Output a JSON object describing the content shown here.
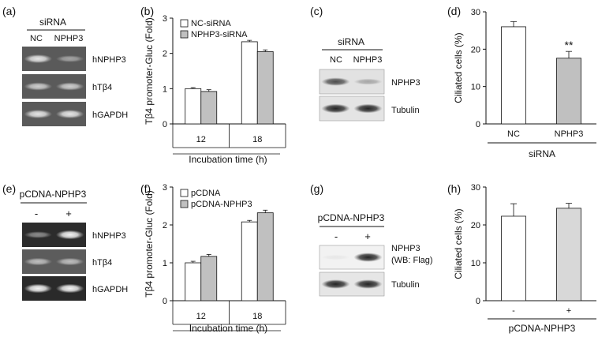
{
  "panels": {
    "a": {
      "letter": "(a)",
      "group_label": "siRNA",
      "lanes": [
        "NC",
        "NPHP3"
      ],
      "rows": [
        {
          "label": "hNPHP3",
          "intensities": [
            0.85,
            0.45
          ]
        },
        {
          "label": "hTβ4",
          "intensities": [
            0.7,
            0.7
          ]
        },
        {
          "label": "hGAPDH",
          "intensities": [
            0.85,
            0.85
          ]
        }
      ]
    },
    "b": {
      "letter": "(b)",
      "chart_data": {
        "type": "bar",
        "categories": [
          "12",
          "18"
        ],
        "series": [
          {
            "name": "NC-siRNA",
            "values": [
              1.0,
              2.33
            ],
            "errors": [
              0.03,
              0.04
            ],
            "color": "#ffffff"
          },
          {
            "name": "NPHP3-siRNA",
            "values": [
              0.92,
              2.05
            ],
            "errors": [
              0.05,
              0.05
            ],
            "color": "#c0c0c0"
          }
        ],
        "xlabel": "Incubation time (h)",
        "ylabel": "Tβ4 promoter-Gluc (Fold)",
        "ylim": [
          0,
          3
        ],
        "yticks": [
          "0",
          "1",
          "2",
          "3"
        ],
        "grid": false,
        "legend": "top-left"
      }
    },
    "c": {
      "letter": "(c)",
      "group_label": "siRNA",
      "lanes": [
        "NC",
        "NPHP3"
      ],
      "rows": [
        {
          "label": "NPHP3",
          "intensities": [
            0.75,
            0.3
          ]
        },
        {
          "label": "Tubulin",
          "intensities": [
            0.95,
            0.95
          ]
        }
      ]
    },
    "d": {
      "letter": "(d)",
      "chart_data": {
        "type": "bar",
        "categories": [
          "NC",
          "NPHP3"
        ],
        "series": [
          {
            "values": [
              26.0,
              17.6
            ],
            "errors": [
              1.4,
              1.8
            ],
            "colors": [
              "#ffffff",
              "#c0c0c0"
            ]
          }
        ],
        "annotations": [
          "",
          "**"
        ],
        "xlabel": "siRNA",
        "ylabel": "Ciliated cells (%)",
        "ylim": [
          0,
          30
        ],
        "yticks": [
          "0",
          "10",
          "20",
          "30"
        ],
        "grid": false
      }
    },
    "e": {
      "letter": "(e)",
      "group_label": "pCDNA-NPHP3",
      "lanes": [
        "-",
        "+"
      ],
      "rows": [
        {
          "label": "hNPHP3",
          "intensities": [
            0.45,
            0.95
          ]
        },
        {
          "label": "hTβ4",
          "intensities": [
            0.6,
            0.6
          ]
        },
        {
          "label": "hGAPDH",
          "intensities": [
            0.95,
            0.95
          ]
        }
      ]
    },
    "f": {
      "letter": "(f)",
      "chart_data": {
        "type": "bar",
        "categories": [
          "12",
          "18"
        ],
        "series": [
          {
            "name": "pCDNA",
            "values": [
              1.0,
              2.08
            ],
            "errors": [
              0.04,
              0.04
            ],
            "color": "#ffffff"
          },
          {
            "name": "pCDNA-NPHP3",
            "values": [
              1.17,
              2.32
            ],
            "errors": [
              0.05,
              0.07
            ],
            "color": "#c0c0c0"
          }
        ],
        "xlabel": "Incubation time (h)",
        "ylabel": "Tβ4 promoter-Gluc (Fold)",
        "ylim": [
          0,
          3
        ],
        "yticks": [
          "0",
          "1",
          "2",
          "3"
        ],
        "grid": false,
        "legend": "top-left"
      }
    },
    "g": {
      "letter": "(g)",
      "group_label": "pCDNA-NPHP3",
      "lanes": [
        "-",
        "+"
      ],
      "rows": [
        {
          "label": "NPHP3",
          "label2": "(WB: Flag)",
          "intensities": [
            0.05,
            0.95
          ]
        },
        {
          "label": "Tubulin",
          "intensities": [
            0.95,
            0.95
          ]
        }
      ]
    },
    "h": {
      "letter": "(h)",
      "chart_data": {
        "type": "bar",
        "categories": [
          "-",
          "+"
        ],
        "series": [
          {
            "values": [
              22.3,
              24.4
            ],
            "errors": [
              3.3,
              1.3
            ],
            "colors": [
              "#ffffff",
              "#d8d8d8"
            ]
          }
        ],
        "annotations": [
          "",
          ""
        ],
        "xlabel": "pCDNA-NPHP3",
        "ylabel": "Ciliated cells (%)",
        "ylim": [
          0,
          30
        ],
        "yticks": [
          "0",
          "10",
          "20",
          "30"
        ],
        "grid": false
      }
    }
  }
}
